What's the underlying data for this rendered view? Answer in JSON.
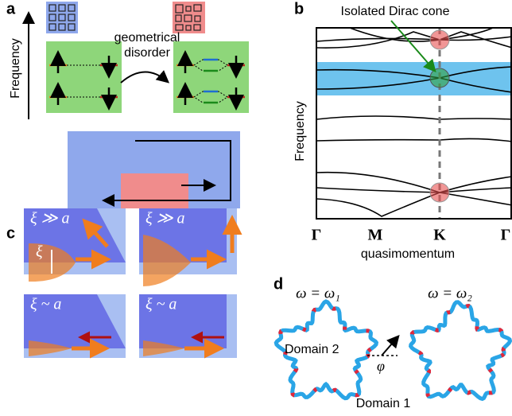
{
  "panels": {
    "a": {
      "label": "a",
      "y_label": "Frequency",
      "arrow_label": [
        "geometrical",
        "disorder"
      ]
    },
    "b": {
      "label": "b",
      "annotation": "Isolated Dirac cone",
      "y_label": "Frequency",
      "x_labels": [
        "Γ",
        "M",
        "K",
        "Γ"
      ],
      "x_label": "quasimomentum"
    },
    "c": {
      "label": "c",
      "box_labels": [
        "ξ ≫ a",
        "ξ ≫ a",
        "ξ ~ a",
        "ξ ~ a"
      ],
      "width_label": "ξ"
    },
    "d": {
      "label": "d",
      "frequency_labels": [
        "ω = ω₁",
        "ω = ω₂"
      ],
      "domain_labels": [
        "Domain 2",
        "Domain 1"
      ],
      "angle_label": "φ"
    }
  }
}
